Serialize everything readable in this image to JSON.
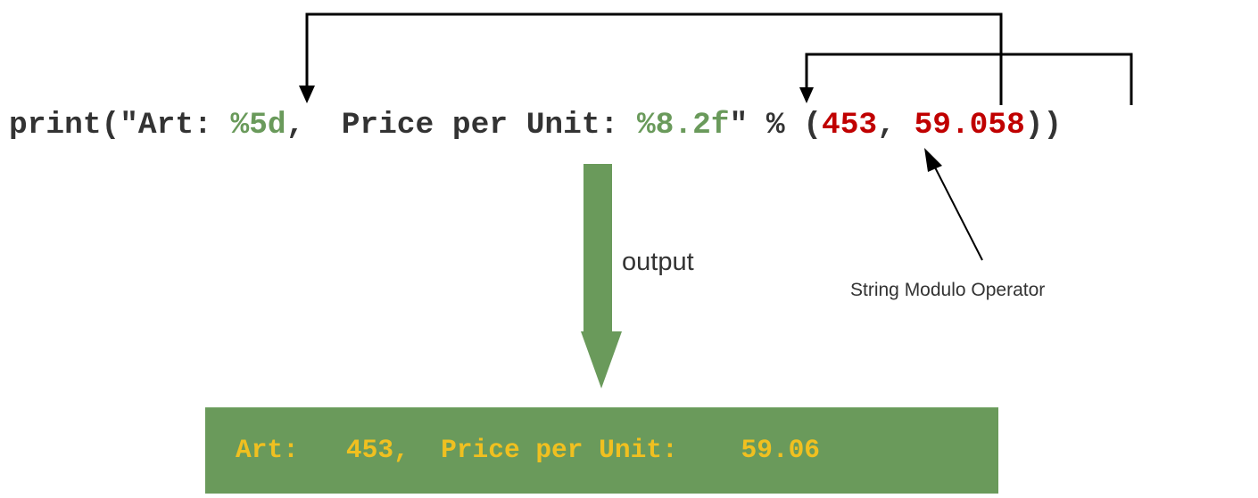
{
  "colors": {
    "text": "#333333",
    "format_spec": "#6a9a5b",
    "argument_value": "#c00000",
    "output_box": "#6a9a5b",
    "output_text": "#f0c020",
    "connector": "#000000"
  },
  "code": {
    "prefix": "print(\"Art: ",
    "spec1": "%5d",
    "middle": ",  Price per Unit: ",
    "spec2": "%8.2f",
    "operator_part": "\" % (",
    "value1": "453",
    "separator": ", ",
    "value2": "59.058",
    "suffix": "))"
  },
  "labels": {
    "output": "output",
    "operator": "String Modulo Operator"
  },
  "output_line": "Art:   453,  Price per Unit:    59.06"
}
